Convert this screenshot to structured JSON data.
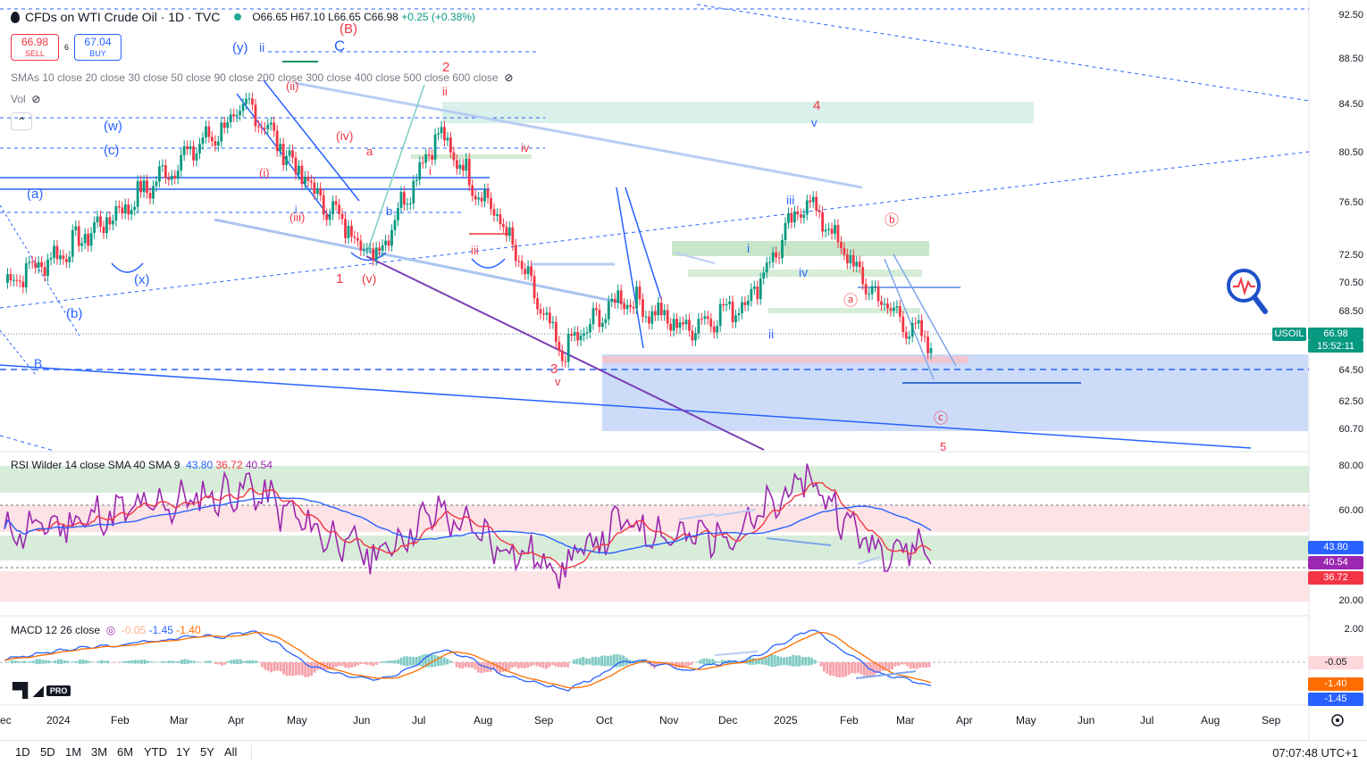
{
  "header": {
    "symbol_title": "CFDs on WTI Crude Oil · 1D · TVC",
    "open": "O66.65",
    "high": "H67.10",
    "low": "L66.65",
    "close": "C66.98",
    "change": "+0.25 (+0.38%)"
  },
  "trade": {
    "sell_price": "66.98",
    "sell_label": "SELL",
    "spread": "6",
    "buy_price": "67.04",
    "buy_label": "BUY"
  },
  "indicators": {
    "sma_label": "SMAs 10 close 20 close 30 close 50 close 90 close 200 close 300 close 400 close 500 close 600 close",
    "vol_label": "Vol",
    "rsi_label": "RSI Wilder 14 close SMA 40 SMA 9",
    "rsi_v1": "43.80",
    "rsi_v2": "36.72",
    "rsi_v3": "40.54",
    "macd_label": "MACD 12 26 close",
    "macd_v1": "-0.05",
    "macd_v2": "-1.45",
    "macd_v3": "-1.40"
  },
  "colors": {
    "up": "#089981",
    "down": "#f23645",
    "accent": "#2962ff",
    "rsi_line": "#9c27b0",
    "macd_signal": "#ff6d00",
    "wave_red": "#f23645",
    "wave_blue": "#2962ff"
  },
  "price_axis": [
    "92.50",
    "88.50",
    "84.50",
    "80.50",
    "76.50",
    "72.50",
    "70.50",
    "68.50",
    "64.50",
    "62.50",
    "60.70"
  ],
  "current_price_tag": {
    "symbol": "USOIL",
    "price": "66.98",
    "countdown": "15:52:11"
  },
  "rsi_axis": [
    "80.00",
    "60.00",
    "20.00"
  ],
  "rsi_tags": [
    "43.80",
    "40.54",
    "36.72"
  ],
  "macd_axis": [
    "2.00"
  ],
  "macd_tags": [
    "-0.05",
    "-1.40",
    "-1.45"
  ],
  "time_axis": [
    "ec",
    "2024",
    "Feb",
    "Mar",
    "Apr",
    "May",
    "Jun",
    "Jul",
    "Aug",
    "Sep",
    "Oct",
    "Nov",
    "Dec",
    "2025",
    "Feb",
    "Mar",
    "Apr",
    "May",
    "Jun",
    "Jul",
    "Aug",
    "Sep"
  ],
  "timeframes": [
    "1D",
    "5D",
    "1M",
    "3M",
    "6M",
    "YTD",
    "1Y",
    "5Y",
    "All"
  ],
  "clock": "07:07:48 UTC+1",
  "logo": {
    "pro": "PRO"
  },
  "wave_labels": {
    "red": [
      "(B)",
      "2",
      "ii",
      "4",
      "(ii)",
      "(iv)",
      "a",
      "iv",
      "(i)",
      "(iii)",
      "i",
      "iii",
      "1",
      "(v)",
      "3",
      "v",
      "ⓑ",
      "ⓐ",
      "ⓒ",
      "5"
    ],
    "blue": [
      "(y)",
      "ii",
      "C",
      "(w)",
      "(c)",
      "(a)",
      "(x)",
      "(b)",
      "B",
      "v",
      "iii",
      "i",
      "iv",
      "ii",
      "b",
      "i"
    ]
  },
  "chart_data": [
    {
      "type": "line",
      "title": "CFDs on WTI Crude Oil · 1D · TVC",
      "x": [
        "Dec 2023",
        "Jan 2024",
        "Feb",
        "Mar",
        "Apr",
        "May",
        "Jun",
        "Jul",
        "Aug",
        "Sep",
        "Oct",
        "Nov",
        "Dec",
        "Jan 2025",
        "Feb",
        "Mar"
      ],
      "series": [
        {
          "values": [
            72.0,
            74.5,
            78.0,
            82.0,
            85.5,
            79.0,
            74.0,
            83.5,
            77.0,
            66.5,
            71.0,
            68.5,
            70.5,
            78.5,
            71.5,
            66.98
          ]
        }
      ],
      "ylim": [
        60.7,
        92.5
      ],
      "last": 66.98,
      "grid": false
    },
    {
      "type": "line",
      "title": "RSI Wilder 14 close SMA 40 SMA 9",
      "series": [
        {
          "values": [
            50,
            55,
            60,
            65,
            70,
            52,
            40,
            60,
            45,
            35,
            55,
            48,
            52,
            75,
            45,
            43.8
          ]
        }
      ],
      "ylim": [
        20,
        80
      ]
    },
    {
      "type": "line",
      "title": "MACD 12 26 close",
      "series": [
        {
          "values": [
            0.2,
            0.8,
            1.2,
            1.5,
            1.8,
            -0.5,
            -1.2,
            1.0,
            -0.8,
            -1.8,
            0.2,
            -0.4,
            0.3,
            2.0,
            -0.6,
            -1.45
          ]
        }
      ],
      "ylim": [
        -2.0,
        2.0
      ]
    }
  ]
}
